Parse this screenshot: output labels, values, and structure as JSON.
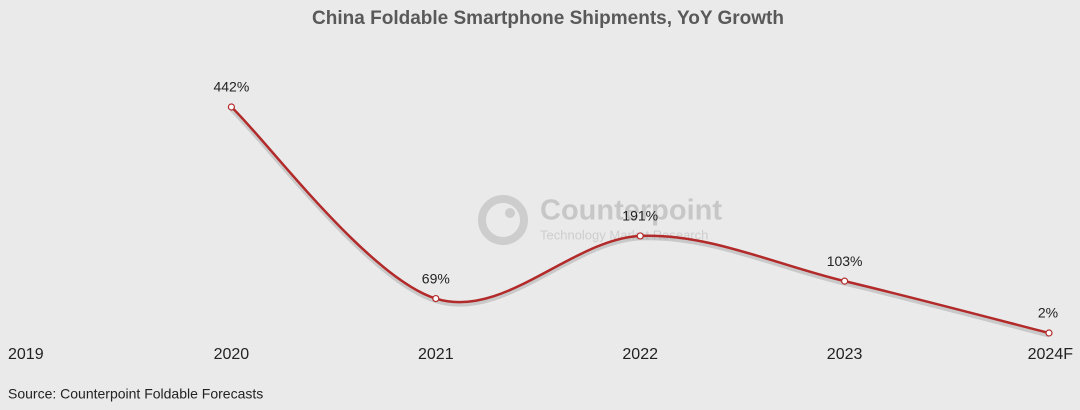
{
  "chart_data": {
    "type": "line",
    "title": "China Foldable Smartphone Shipments, YoY Growth",
    "categories": [
      "2019",
      "2020",
      "2021",
      "2022",
      "2023",
      "2024F"
    ],
    "series": [
      {
        "name": "YoY Growth",
        "color": "#b22a2a",
        "values": [
          null,
          442,
          69,
          191,
          103,
          2
        ],
        "value_labels": [
          null,
          "442%",
          "69%",
          "191%",
          "103%",
          "2%"
        ]
      }
    ],
    "watermark": {
      "name": "Counterpoint",
      "tagline": "Technology Market Research"
    },
    "source": "Source: Counterpoint Foldable Forecasts"
  }
}
